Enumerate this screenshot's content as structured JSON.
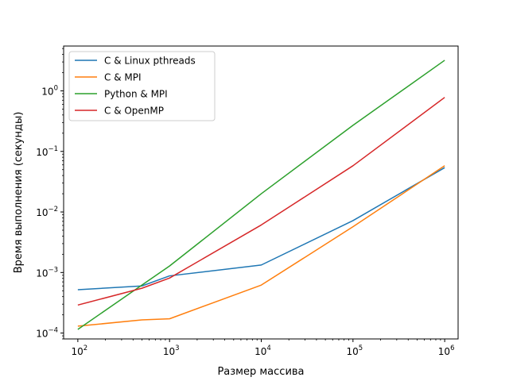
{
  "chart_data": {
    "type": "line",
    "title": "",
    "xlabel": "Размер массива",
    "ylabel": "Время выполнения (секунды)",
    "x_scale": "log",
    "y_scale": "log",
    "xlim": [
      70,
      1400000
    ],
    "ylim": [
      8e-05,
      5.5
    ],
    "x_ticks": [
      {
        "value": 100,
        "base": "10",
        "exp": "2"
      },
      {
        "value": 1000,
        "base": "10",
        "exp": "3"
      },
      {
        "value": 10000,
        "base": "10",
        "exp": "4"
      },
      {
        "value": 100000,
        "base": "10",
        "exp": "5"
      },
      {
        "value": 1000000,
        "base": "10",
        "exp": "6"
      }
    ],
    "y_ticks": [
      {
        "value": 0.0001,
        "base": "10",
        "exp": "−4"
      },
      {
        "value": 0.001,
        "base": "10",
        "exp": "−3"
      },
      {
        "value": 0.01,
        "base": "10",
        "exp": "−2"
      },
      {
        "value": 0.1,
        "base": "10",
        "exp": "−1"
      },
      {
        "value": 1,
        "base": "10",
        "exp": "0"
      }
    ],
    "grid": false,
    "legend": "top-left",
    "series": [
      {
        "name": "C & Linux pthreads",
        "color": "#1f77b4",
        "x": [
          100,
          500,
          1000,
          10000,
          100000,
          1000000
        ],
        "y": [
          0.00052,
          0.0006,
          0.00088,
          0.00133,
          0.0072,
          0.054
        ]
      },
      {
        "name": "C & MPI",
        "color": "#ff7f0e",
        "x": [
          100,
          500,
          1000,
          10000,
          100000,
          1000000
        ],
        "y": [
          0.00013,
          0.000165,
          0.000172,
          0.00062,
          0.0057,
          0.058
        ]
      },
      {
        "name": "Python & MPI",
        "color": "#2ca02c",
        "x": [
          100,
          500,
          1000,
          10000,
          100000,
          1000000
        ],
        "y": [
          0.000115,
          0.00062,
          0.00128,
          0.02,
          0.27,
          3.2
        ]
      },
      {
        "name": "C & OpenMP",
        "color": "#d62728",
        "x": [
          100,
          500,
          1000,
          10000,
          100000,
          1000000
        ],
        "y": [
          0.00029,
          0.00055,
          0.00081,
          0.0061,
          0.058,
          0.78
        ]
      }
    ]
  }
}
